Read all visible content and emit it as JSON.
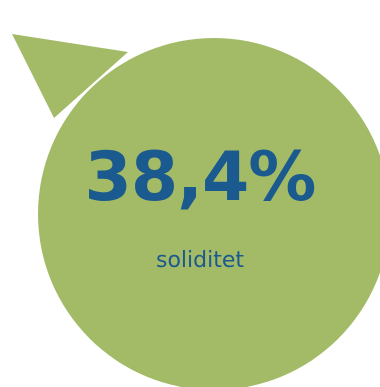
{
  "key_figure": {
    "value": "38,4%",
    "caption": "soliditet"
  },
  "colors": {
    "bubble_fill": "#a3bb67",
    "text": "#1b5a8e",
    "background": "#ffffff"
  }
}
